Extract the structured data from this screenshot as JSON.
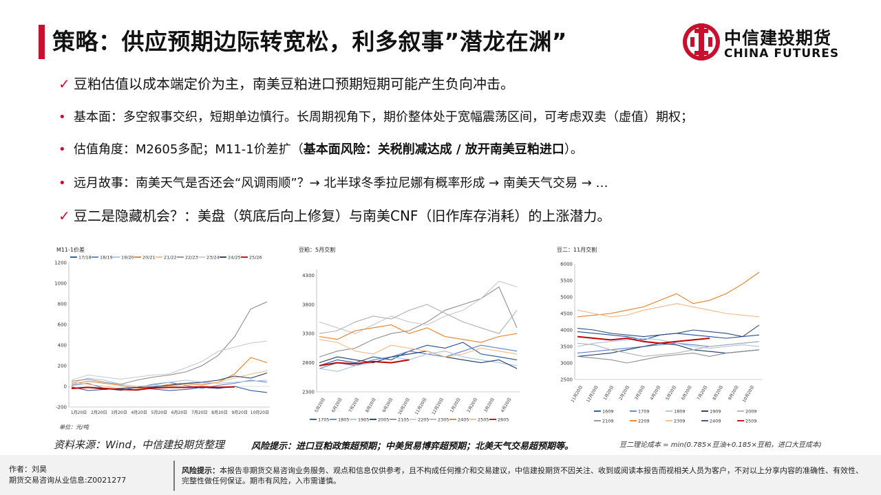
{
  "header": {
    "title": "策略：供应预期边际转宽松，利多叙事”潜龙在渊”",
    "logo_cn": "中信建投期货",
    "logo_en": "CHINA FUTURES",
    "accent_color": "#c8102e"
  },
  "bullets": [
    {
      "mark": "✓",
      "text": "豆粕估值以成本端定价为主，南美豆粕进口预期短期可能产生负向冲击。"
    },
    {
      "mark": "•",
      "text": "基本面：多空叙事交织，短期单边慎行。长周期视角下，期价整体处于宽幅震荡区间，可考虑双卖（虚值）期权；"
    },
    {
      "mark": "•",
      "text_pre": "估值角度：M2605多配；M11-1价差扩（",
      "text_bold": "基本面风险：关税削减达成 / 放开南美豆粕进口",
      "text_post": "）。"
    },
    {
      "mark": "•",
      "text": "远月故事：南美天气是否还会“风调雨顺”？→ 北半球冬季拉尼娜有概率形成 → 南美天气交易 → …"
    },
    {
      "mark": "✓",
      "text": "豆二是隐藏机会？：美盘（筑底后向上修复）与南美CNF（旧作库存消耗）的上涨潜力。"
    }
  ],
  "source": "资料来源：Wind，中信建投期货整理",
  "risk_note": "风险提示：进口豆粕政策超预期；中美贸易博弈超预期；北美天气交易超预期等。",
  "formula": "豆二理论成本 = min(0.785×豆油+0.185×豆粕，进口大豆成本)",
  "footer": {
    "author": "作者：刘昊",
    "license": "期货交易咨询从业信息:Z0021277",
    "risk_label": "风险提示：",
    "risk_text": "本报告非期货交易咨询业务服务、观点和信息仅供参考，且不构成任何推介和交易建议，中信建投期货不因关注、收到或阅读本报告而视相关人员为客户，不对以上分享内容的准确性、有效性、完整性做任何保证。期市有风险，入市需谨慎。"
  },
  "chart_data": [
    {
      "type": "line",
      "title": "M11-1价差",
      "unit_note": "单位：元/吨",
      "x_ticks": [
        "1月20日",
        "2月20日",
        "3月20日",
        "4月20日",
        "5月20日",
        "6月20日",
        "7月20日",
        "8月20日",
        "9月20日",
        "10月20日"
      ],
      "yticks": [
        1200,
        1000,
        800,
        600,
        400,
        200,
        0,
        -200
      ],
      "ylim": [
        -200,
        1200
      ],
      "series": [
        {
          "name": "17/18",
          "color": "#1f4e9a",
          "values": [
            -5,
            -40,
            -30,
            -20,
            -10,
            -25,
            -40,
            -30,
            -10,
            -20,
            0,
            -40,
            -60
          ]
        },
        {
          "name": "18/19",
          "color": "#5b7ec9",
          "values": [
            10,
            30,
            -20,
            -40,
            -10,
            20,
            40,
            10,
            -20,
            10,
            30,
            60,
            40
          ]
        },
        {
          "name": "19/20",
          "color": "#a8c1e6",
          "values": [
            30,
            80,
            60,
            20,
            0,
            10,
            40,
            60,
            40,
            30,
            40,
            50,
            60
          ]
        },
        {
          "name": "20/21",
          "color": "#e67e22",
          "values": [
            20,
            50,
            30,
            10,
            -20,
            -10,
            20,
            30,
            20,
            40,
            120,
            280,
            230
          ]
        },
        {
          "name": "21/22",
          "color": "#f5b887",
          "values": [
            40,
            20,
            0,
            -20,
            0,
            10,
            0,
            20,
            10,
            40,
            80,
            120,
            150
          ]
        },
        {
          "name": "22/23",
          "color": "#8c8c8c",
          "values": [
            50,
            70,
            40,
            20,
            60,
            90,
            110,
            140,
            200,
            300,
            480,
            750,
            820
          ]
        },
        {
          "name": "23/24",
          "color": "#c8c8c8",
          "values": [
            60,
            110,
            90,
            70,
            90,
            110,
            120,
            180,
            240,
            340,
            380,
            420,
            440
          ]
        },
        {
          "name": "24/25",
          "color": "#17375e",
          "values": [
            -20,
            -10,
            -30,
            -20,
            -10,
            -5,
            10,
            30,
            40,
            60,
            100,
            80,
            130
          ]
        },
        {
          "name": "25/26",
          "color": "#c00000",
          "values": [
            -20,
            -10,
            -20,
            -30,
            -35,
            -15,
            -10,
            -10,
            -5,
            -10,
            -5
          ]
        }
      ]
    },
    {
      "type": "line",
      "title": "豆粕：5月交割",
      "x_ticks": [
        "5月20日",
        "6月20日",
        "7月20日",
        "8月20日",
        "9月20日",
        "10月20日",
        "11月20日",
        "12月20日",
        "1月20日",
        "2月20日",
        "3月20日",
        "4月20日"
      ],
      "yticks": [
        4300,
        3800,
        3300,
        2800,
        2300
      ],
      "ylim": [
        2300,
        4400
      ],
      "series": [
        {
          "name": "1705",
          "color": "#1f4e9a",
          "values": [
            2750,
            2850,
            2800,
            2900,
            2850,
            3000,
            3100,
            3050,
            3150,
            2950,
            2900,
            2850
          ]
        },
        {
          "name": "1805",
          "color": "#5b7ec9",
          "values": [
            2700,
            2800,
            2750,
            2850,
            2900,
            3000,
            2950,
            2900,
            3000,
            3100,
            3050,
            3000
          ]
        },
        {
          "name": "1905",
          "color": "#a8c1e6",
          "values": [
            2700,
            2650,
            2750,
            2800,
            2900,
            2850,
            2950,
            3000,
            2900,
            2850,
            2800,
            2750
          ]
        },
        {
          "name": "2005",
          "color": "#17375e",
          "values": [
            2800,
            2900,
            2850,
            2800,
            2900,
            2950,
            3000,
            2900,
            2850,
            2800,
            2850,
            2700
          ]
        },
        {
          "name": "2105",
          "color": "#8c8c8c",
          "values": [
            2900,
            3000,
            3050,
            3200,
            3300,
            3350,
            3500,
            3700,
            3800,
            3900,
            4100,
            3400
          ]
        },
        {
          "name": "2205",
          "color": "#c8c8c8",
          "values": [
            3500,
            3400,
            3300,
            3450,
            3600,
            3500,
            3450,
            3600,
            3700,
            3900,
            4200,
            4100
          ]
        },
        {
          "name": "2305",
          "color": "#b0b0b0",
          "values": [
            3300,
            3350,
            3500,
            3600,
            3550,
            3700,
            3800,
            3650,
            3500,
            3400,
            3300,
            3700
          ]
        },
        {
          "name": "2405",
          "color": "#e67e22",
          "values": [
            3250,
            3200,
            3350,
            3400,
            3450,
            3300,
            3400,
            3250,
            3200,
            3150,
            3250,
            3300
          ]
        },
        {
          "name": "2505",
          "color": "#f5b887",
          "values": [
            3200,
            3150,
            3000,
            2950,
            3100,
            3050,
            3000,
            2900,
            2950,
            3050,
            3000,
            2950
          ]
        },
        {
          "name": "2605",
          "color": "#c00000",
          "values": [
            2750,
            2800,
            2780,
            2820,
            2800,
            2850
          ]
        }
      ]
    },
    {
      "type": "line",
      "title": "豆二：11月交割",
      "x_ticks": [
        "11月20日",
        "12月20日",
        "1月20日",
        "2月20日",
        "3月20日",
        "4月20日",
        "5月20日",
        "6月20日",
        "7月20日",
        "8月20日",
        "9月20日",
        "10月20日"
      ],
      "yticks": [
        6000,
        5500,
        5000,
        4500,
        4000,
        3500,
        3000,
        2500
      ],
      "ylim": [
        2500,
        6000
      ],
      "series": [
        {
          "name": "1609",
          "color": "#1f4e9a",
          "values": [
            3950,
            3900,
            3850,
            3800,
            3700,
            3850,
            3900,
            3850,
            3800,
            3750,
            3800,
            3850
          ]
        },
        {
          "name": "1709",
          "color": "#5b7ec9",
          "values": [
            3300,
            3350,
            3400,
            3450,
            3500,
            3550,
            3600,
            3550,
            3500,
            3550,
            3600,
            3650
          ]
        },
        {
          "name": "1809",
          "color": "#a8c1e6",
          "values": [
            3500,
            3600,
            3650,
            3700,
            3750,
            3700,
            3600,
            3500,
            3450,
            3500,
            3550,
            3500
          ]
        },
        {
          "name": "1909",
          "color": "#17375e",
          "values": [
            3200,
            3250,
            3300,
            3400,
            3500,
            3600,
            3550,
            3400,
            3350,
            3300,
            3350,
            3400
          ]
        },
        {
          "name": "2009",
          "color": "#b0b0b0",
          "values": [
            3600,
            3550,
            3400,
            3300,
            3200,
            3250,
            3300,
            3400,
            3500,
            3550,
            3600,
            3650
          ]
        },
        {
          "name": "2109",
          "color": "#8c8c8c",
          "values": [
            3200,
            3150,
            3100,
            3000,
            3100,
            3200,
            3250,
            3300,
            3200,
            3300,
            3350,
            3400
          ]
        },
        {
          "name": "2209",
          "color": "#e67e22",
          "values": [
            4400,
            4450,
            4500,
            4600,
            4700,
            4900,
            5100,
            4800,
            4900,
            5100,
            5400,
            5750
          ]
        },
        {
          "name": "2309",
          "color": "#f5b887",
          "values": [
            4600,
            4500,
            4400,
            4450,
            4600,
            4700,
            4800,
            4700,
            4600,
            4500,
            4450,
            4400
          ]
        },
        {
          "name": "2409",
          "color": "#2c4a7a",
          "values": [
            4050,
            4000,
            3900,
            3850,
            3800,
            3850,
            3900,
            4000,
            3950,
            3900,
            3800,
            4150
          ]
        },
        {
          "name": "2509",
          "color": "#c00000",
          "values": [
            3800,
            3750,
            3700,
            3750,
            3650,
            3600,
            3650,
            3700,
            3750
          ]
        }
      ]
    }
  ]
}
